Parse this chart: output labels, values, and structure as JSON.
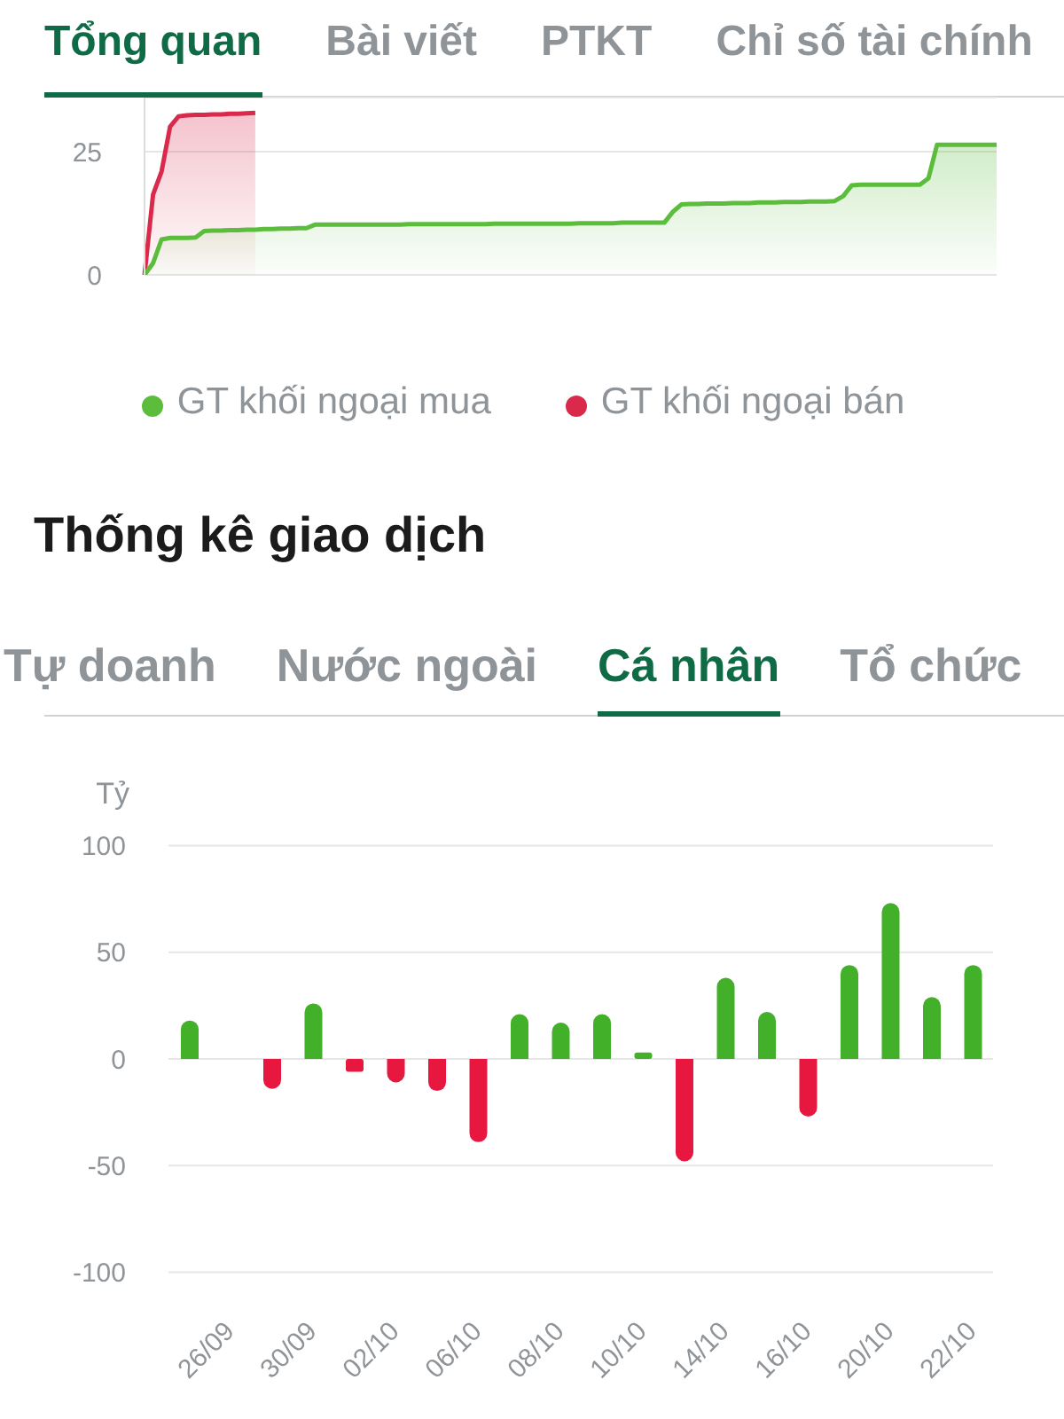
{
  "chart_data": [
    {
      "type": "area",
      "annotations": [
        "Tổng quan",
        "Bài viết",
        "PTKT",
        "Chỉ số tài chính"
      ],
      "categories": [
        null,
        null,
        null,
        null,
        null,
        null,
        null,
        null,
        null,
        null,
        null,
        null,
        null,
        null,
        null,
        null,
        null,
        null,
        null,
        null,
        null,
        null,
        null,
        null,
        null,
        null,
        null,
        null,
        null,
        null,
        null,
        null,
        null,
        null,
        null,
        null,
        null,
        null,
        null,
        null,
        null,
        null,
        null,
        null,
        null,
        null,
        null,
        null,
        null,
        null,
        null,
        null,
        null,
        null,
        null,
        null,
        null,
        null,
        null,
        null,
        null,
        null,
        null,
        null,
        null,
        null,
        null,
        null,
        null,
        null,
        null,
        null,
        null,
        null,
        null,
        null,
        null,
        null,
        null,
        null,
        null,
        null,
        null,
        null,
        null,
        null,
        null,
        null,
        null,
        null,
        null,
        null,
        null,
        null,
        null,
        null,
        null,
        null,
        null,
        null,
        null
      ],
      "series": [
        {
          "name": "GT khối ngoại mua",
          "color": "#5cbd3c",
          "values": [
            0,
            2.4,
            7.2,
            7.5,
            7.5,
            7.5,
            7.6,
            8.9,
            9,
            9,
            9.1,
            9.1,
            9.2,
            9.2,
            9.3,
            9.3,
            9.4,
            9.4,
            9.5,
            9.5,
            10.2,
            10.2,
            10.2,
            10.2,
            10.2,
            10.2,
            10.2,
            10.2,
            10.2,
            10.2,
            10.2,
            10.3,
            10.3,
            10.3,
            10.3,
            10.3,
            10.3,
            10.3,
            10.3,
            10.3,
            10.3,
            10.4,
            10.4,
            10.4,
            10.4,
            10.4,
            10.4,
            10.4,
            10.4,
            10.4,
            10.4,
            10.5,
            10.5,
            10.5,
            10.5,
            10.5,
            10.6,
            10.6,
            10.6,
            10.6,
            10.6,
            10.6,
            12.8,
            14.3,
            14.4,
            14.4,
            14.5,
            14.5,
            14.5,
            14.6,
            14.6,
            14.6,
            14.7,
            14.7,
            14.7,
            14.8,
            14.8,
            14.8,
            14.9,
            14.9,
            14.9,
            15,
            16,
            18.2,
            18.3,
            18.3,
            18.3,
            18.3,
            18.3,
            18.3,
            18.3,
            18.3,
            19.6,
            26.4,
            26.4,
            26.4,
            26.4,
            26.4,
            26.4,
            26.4,
            26.4
          ]
        },
        {
          "name": "GT khối ngoại bán",
          "color": "#d92a4c",
          "values": [
            0,
            16.3,
            21,
            30.1,
            32.2,
            32.4,
            32.5,
            32.5,
            32.6,
            32.6,
            32.7,
            32.7,
            32.8,
            32.9,
            null,
            null,
            null,
            null,
            null,
            null,
            null,
            null,
            null,
            null,
            null,
            null,
            null,
            null,
            null,
            null,
            null,
            null,
            null,
            null,
            null,
            null,
            null,
            null,
            null,
            null,
            null,
            null,
            null,
            null,
            null,
            null,
            null,
            null,
            null,
            null,
            null,
            null,
            null,
            null,
            null,
            null,
            null,
            null,
            null,
            null,
            null,
            null,
            null,
            null,
            null,
            null,
            null,
            null,
            null,
            null,
            null,
            null,
            null,
            null,
            null,
            null,
            null,
            null,
            null,
            null,
            null,
            null,
            null,
            null,
            null,
            null,
            null,
            null,
            null,
            null,
            null,
            null,
            null,
            null,
            null,
            null,
            null,
            null,
            null,
            null,
            null
          ]
        }
      ],
      "ylim": [
        0,
        36
      ],
      "yticks": [
        0,
        25
      ],
      "grid": "y",
      "legend": "bottom",
      "tick_labels": "y"
    },
    {
      "type": "bar",
      "title": "Thống kê giao dịch",
      "annotations": [
        "Tự doanh",
        "Nước ngoài",
        "Cá nhân",
        "Tổ chức"
      ],
      "ylabel": "Tỷ",
      "categories": [
        null,
        "26/09",
        null,
        "30/09",
        null,
        "02/10",
        null,
        "06/10",
        null,
        "08/10",
        null,
        "10/10",
        null,
        "14/10",
        null,
        "16/10",
        null,
        "20/10",
        null,
        "22/10"
      ],
      "values": [
        18,
        null,
        -14,
        26,
        -6,
        -11,
        -15,
        -39,
        21,
        17,
        21,
        3,
        -48,
        38,
        22,
        -27,
        44,
        73,
        29,
        44
      ],
      "colors": [
        "#43b02a",
        "#43b02a",
        "#e8173f",
        "#43b02a",
        "#e8173f",
        "#e8173f",
        "#e8173f",
        "#e8173f",
        "#43b02a",
        "#43b02a",
        "#43b02a",
        "#43b02a",
        "#e8173f",
        "#43b02a",
        "#43b02a",
        "#e8173f",
        "#43b02a",
        "#43b02a",
        "#43b02a",
        "#43b02a"
      ],
      "ylim": [
        -100,
        100
      ],
      "yticks": [
        -100,
        -50,
        0,
        50,
        100
      ],
      "grid": "y"
    }
  ]
}
